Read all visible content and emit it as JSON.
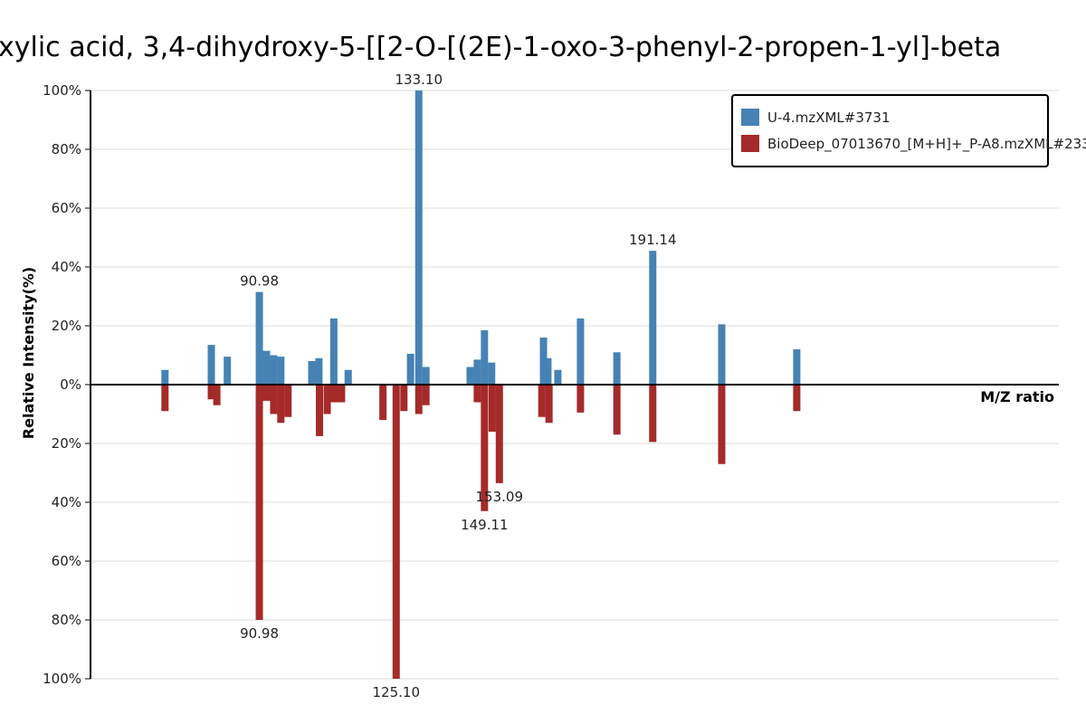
{
  "chart_data": {
    "type": "bar",
    "title": "xylic  acid,  3,4-dihydroxy-5-[[2-O-[(2E)-1-oxo-3-phenyl-2-propen-1-yl]-beta",
    "xlabel": "M/Z ratio",
    "ylabel": "Relative Intensity(%)",
    "ylim": [
      -100,
      100
    ],
    "y_ticks": [
      "100%",
      "80%",
      "60%",
      "40%",
      "20%",
      "0%",
      "20%",
      "40%",
      "60%",
      "80%",
      "100%"
    ],
    "xlim": [
      49.5,
      225
    ],
    "grid": true,
    "legend_position": "top-right",
    "colors": {
      "top": "#4682b4",
      "bottom": "#a52a2a"
    },
    "series": [
      {
        "name": "U-4.mzXML#3731",
        "direction": "up",
        "points": [
          {
            "x": 63.0,
            "y": 5
          },
          {
            "x": 71.4,
            "y": 13.5
          },
          {
            "x": 74.3,
            "y": 9.5
          },
          {
            "x": 80.1,
            "y": 31.5
          },
          {
            "x": 81.4,
            "y": 11.5
          },
          {
            "x": 82.7,
            "y": 10
          },
          {
            "x": 84.0,
            "y": 9.5
          },
          {
            "x": 89.6,
            "y": 8
          },
          {
            "x": 90.9,
            "y": 9
          },
          {
            "x": 93.6,
            "y": 22.5
          },
          {
            "x": 96.2,
            "y": 5
          },
          {
            "x": 107.5,
            "y": 10.5
          },
          {
            "x": 109.0,
            "y": 100
          },
          {
            "x": 110.3,
            "y": 6
          },
          {
            "x": 118.3,
            "y": 6
          },
          {
            "x": 119.6,
            "y": 8.5
          },
          {
            "x": 120.9,
            "y": 18.5
          },
          {
            "x": 122.2,
            "y": 7.5
          },
          {
            "x": 131.6,
            "y": 16
          },
          {
            "x": 132.4,
            "y": 9
          },
          {
            "x": 134.2,
            "y": 5
          },
          {
            "x": 138.3,
            "y": 22.5
          },
          {
            "x": 144.9,
            "y": 11
          },
          {
            "x": 151.4,
            "y": 45.5
          },
          {
            "x": 163.9,
            "y": 20.5
          },
          {
            "x": 177.5,
            "y": 12
          }
        ],
        "labels": [
          {
            "x": 80.1,
            "y": 31.5,
            "text": "90.98"
          },
          {
            "x": 109.0,
            "y": 100,
            "text": "133.10"
          },
          {
            "x": 151.4,
            "y": 45.5,
            "text": "191.14"
          }
        ]
      },
      {
        "name": "BioDeep_07013670_[M+H]+_P-A8.mzXML#233",
        "direction": "down",
        "points": [
          {
            "x": 63.0,
            "y": 9
          },
          {
            "x": 71.4,
            "y": 5
          },
          {
            "x": 72.4,
            "y": 7
          },
          {
            "x": 80.1,
            "y": 80
          },
          {
            "x": 81.4,
            "y": 5.5
          },
          {
            "x": 82.7,
            "y": 10
          },
          {
            "x": 84.0,
            "y": 13
          },
          {
            "x": 85.3,
            "y": 11
          },
          {
            "x": 91.0,
            "y": 17.5
          },
          {
            "x": 92.4,
            "y": 10
          },
          {
            "x": 93.7,
            "y": 6
          },
          {
            "x": 95.0,
            "y": 6
          },
          {
            "x": 102.5,
            "y": 12
          },
          {
            "x": 104.9,
            "y": 100
          },
          {
            "x": 106.3,
            "y": 9
          },
          {
            "x": 109.0,
            "y": 10
          },
          {
            "x": 110.3,
            "y": 7
          },
          {
            "x": 119.6,
            "y": 6
          },
          {
            "x": 120.9,
            "y": 43
          },
          {
            "x": 122.3,
            "y": 16
          },
          {
            "x": 123.6,
            "y": 33.5
          },
          {
            "x": 131.3,
            "y": 11
          },
          {
            "x": 132.6,
            "y": 13
          },
          {
            "x": 138.3,
            "y": 9.5
          },
          {
            "x": 144.9,
            "y": 17
          },
          {
            "x": 151.4,
            "y": 19.5
          },
          {
            "x": 163.9,
            "y": 27
          },
          {
            "x": 177.5,
            "y": 9
          }
        ],
        "labels": [
          {
            "x": 80.1,
            "y": 80,
            "text": "90.98"
          },
          {
            "x": 104.9,
            "y": 100,
            "text": "125.10"
          },
          {
            "x": 120.9,
            "y": 43,
            "text": "149.11"
          },
          {
            "x": 123.6,
            "y": 33.5,
            "text": "153.09"
          }
        ]
      }
    ]
  }
}
